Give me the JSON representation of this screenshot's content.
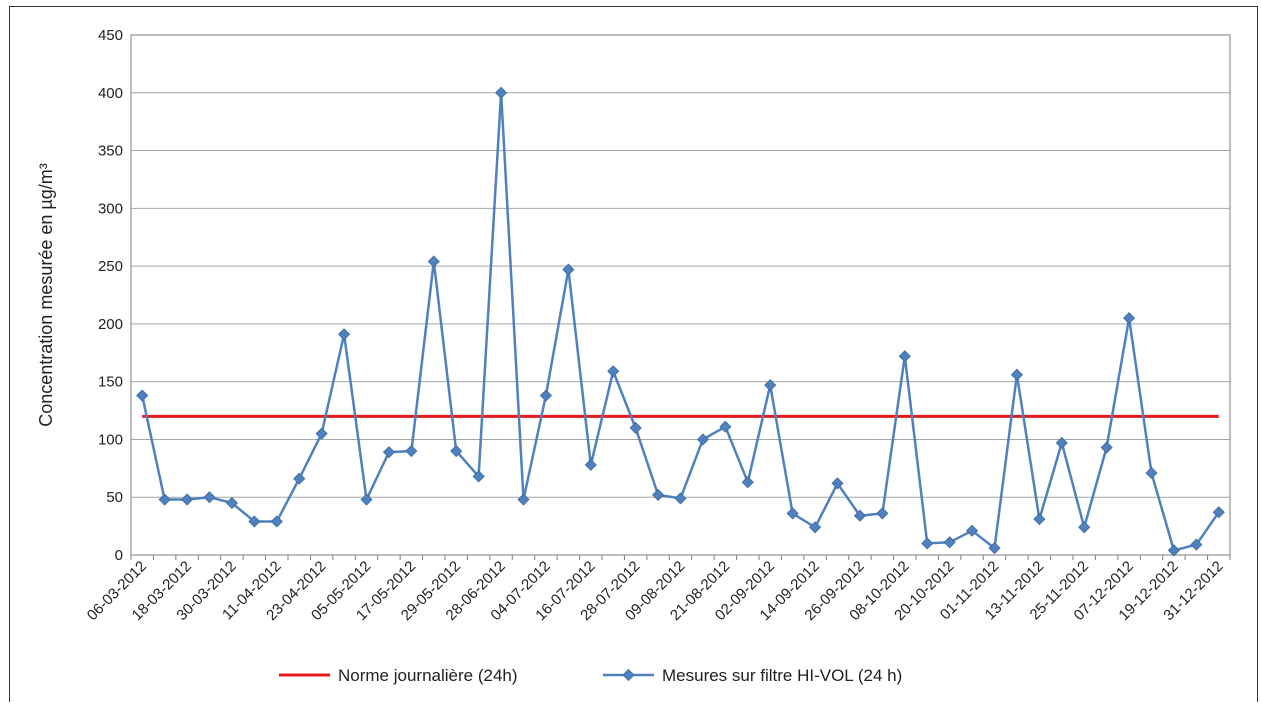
{
  "chart_data": {
    "type": "line",
    "title": "",
    "xlabel": "",
    "ylabel": "Concentration mesurée en µg/m³",
    "ylim": [
      0,
      450
    ],
    "yticks": [
      "0",
      "50",
      "100",
      "150",
      "200",
      "250",
      "300",
      "350",
      "400",
      "450"
    ],
    "grid": true,
    "legend_position": "bottom",
    "x_tick_labels": [
      "06-03-2012",
      "18-03-2012",
      "30-03-2012",
      "11-04-2012",
      "23-04-2012",
      "05-05-2012",
      "17-05-2012",
      "29-05-2012",
      "28-06-2012",
      "04-07-2012",
      "16-07-2012",
      "28-07-2012",
      "09-08-2012",
      "21-08-2012",
      "02-09-2012",
      "14-09-2012",
      "26-09-2012",
      "08-10-2012",
      "20-10-2012",
      "01-11-2012",
      "13-11-2012",
      "25-11-2012",
      "07-12-2012",
      "19-12-2012",
      "31-12-2012"
    ],
    "series": [
      {
        "name": "Norme journalière (24h)",
        "color": "#e41a1c",
        "kind": "constant",
        "value": 120
      },
      {
        "name": "Mesures sur filtre HI-VOL (24 h)",
        "color": "#4f81bd",
        "kind": "measurements",
        "values": [
          138,
          48,
          48,
          50,
          45,
          29,
          29,
          66,
          105,
          191,
          48,
          89,
          90,
          254,
          90,
          68,
          400,
          48,
          138,
          247,
          78,
          159,
          110,
          52,
          49,
          100,
          111,
          63,
          147,
          36,
          24,
          62,
          34,
          36,
          172,
          10,
          11,
          21,
          6,
          156,
          31,
          97,
          24,
          93,
          205,
          71,
          4,
          9,
          37
        ]
      }
    ]
  }
}
